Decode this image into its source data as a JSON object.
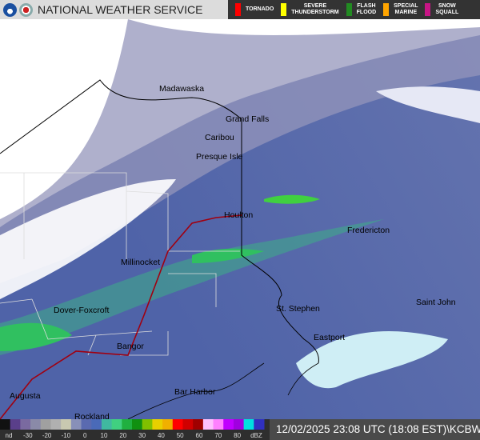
{
  "header": {
    "title": "NATIONAL WEATHER SERVICE",
    "logos": [
      "NOAA",
      "NWS"
    ]
  },
  "warnings": [
    {
      "label1": "TORNADO",
      "label2": "",
      "color": "#ff0000"
    },
    {
      "label1": "SEVERE",
      "label2": "THUNDERSTORM",
      "color": "#ffff00"
    },
    {
      "label1": "FLASH",
      "label2": "FLOOD",
      "color": "#228b22"
    },
    {
      "label1": "SPECIAL",
      "label2": "MARINE",
      "color": "#ffa500"
    },
    {
      "label1": "SNOW",
      "label2": "SQUALL",
      "color": "#c71585"
    }
  ],
  "cities": [
    {
      "name": "Madawaska"
    },
    {
      "name": "Grand Falls"
    },
    {
      "name": "Caribou"
    },
    {
      "name": "Presque Isle"
    },
    {
      "name": "Houlton"
    },
    {
      "name": "Fredericton"
    },
    {
      "name": "Millinocket"
    },
    {
      "name": "St. Stephen"
    },
    {
      "name": "Saint John"
    },
    {
      "name": "Dover-Foxcroft"
    },
    {
      "name": "Bangor"
    },
    {
      "name": "Eastport"
    },
    {
      "name": "Augusta"
    },
    {
      "name": "Bar Harbor"
    },
    {
      "name": "Rockland"
    }
  ],
  "scale": {
    "labels": [
      "nd",
      "-30",
      "-20",
      "-10",
      "0",
      "10",
      "20",
      "30",
      "40",
      "50",
      "60",
      "70",
      "80",
      "dBZ"
    ],
    "colors": [
      "#111111",
      "#5a3f8a",
      "#7a6aa0",
      "#8a8aa8",
      "#a0a0a0",
      "#b0b0b0",
      "#c8c8b0",
      "#8890b8",
      "#5a6ab0",
      "#4a6ab8",
      "#40b8a0",
      "#40d080",
      "#20b040",
      "#109010",
      "#80c000",
      "#e8d000",
      "#f0b000",
      "#ff0000",
      "#d00000",
      "#a00000",
      "#ffc0ff",
      "#ff80ff",
      "#c000ff",
      "#a000e0",
      "#00e0e0",
      "#3030c0"
    ]
  },
  "timestamp": "12/02/2025 23:08 UTC (18:08 EST)\\KCBW"
}
